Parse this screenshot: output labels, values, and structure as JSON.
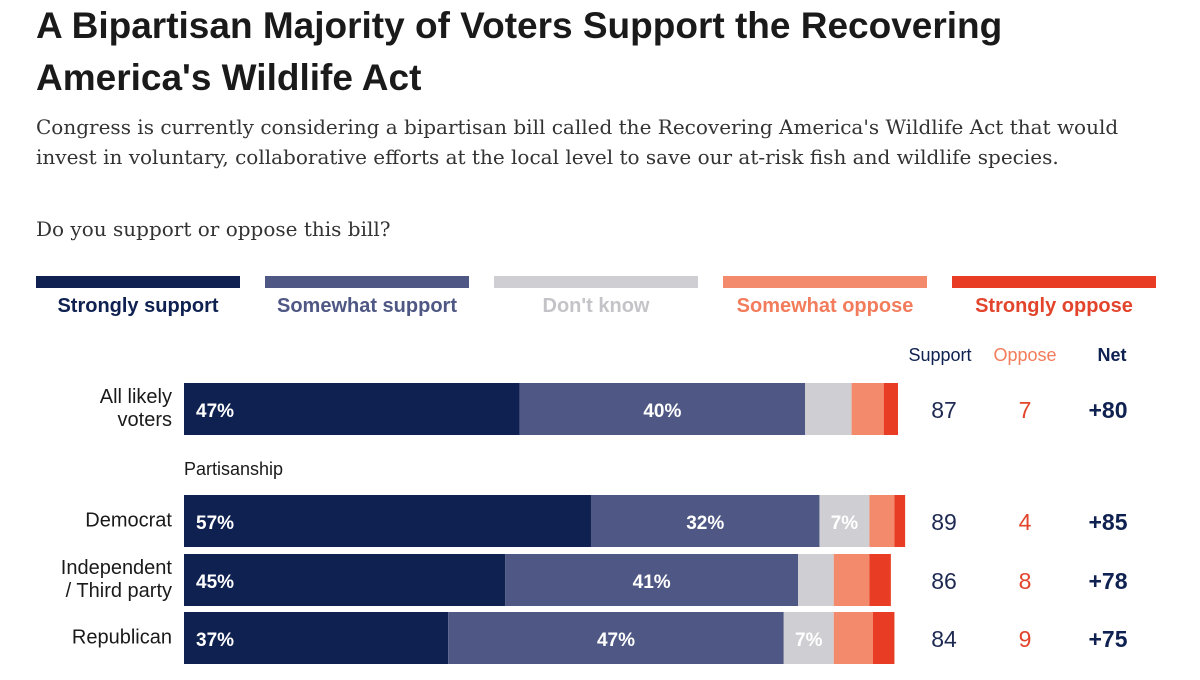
{
  "title": "A Bipartisan Majority of Voters Support the Recovering America's Wildlife Act",
  "subtitle": "Congress is currently considering a bipartisan bill called the Recovering America's Wildlife Act that would invest in voluntary, collaborative efforts at the local level to save our at-risk fish and wildlife species.",
  "question": "Do you support or oppose this bill?",
  "colors": {
    "strongly_support": "#0f2150",
    "somewhat_support": "#4f5884",
    "dont_know": "#cfcfd3",
    "somewhat_oppose": "#f38a6b",
    "strongly_oppose": "#e93c24"
  },
  "legend": [
    {
      "label": "Strongly support",
      "color": "#0f2150",
      "text_color": "#0f2150"
    },
    {
      "label": "Somewhat support",
      "color": "#4f5884",
      "text_color": "#4f5884"
    },
    {
      "label": "Don't know",
      "color": "#cfcfd3",
      "text_color": "#c4c4c8"
    },
    {
      "label": "Somewhat oppose",
      "color": "#f38a6b",
      "text_color": "#f27c5b"
    },
    {
      "label": "Strongly oppose",
      "color": "#e93c24",
      "text_color": "#e2452c"
    }
  ],
  "columns": {
    "support": "Support",
    "oppose": "Oppose",
    "net": "Net"
  },
  "section_label": "Partisanship",
  "chart_data": {
    "type": "bar",
    "orientation": "horizontal",
    "stacked": true,
    "xlim": [
      0,
      100
    ],
    "categories": [
      "All likely voters",
      "Democrat",
      "Independent / Third party",
      "Republican"
    ],
    "category_display": [
      "All likely\nvoters",
      "Democrat",
      "Independent\n/ Third party",
      "Republican"
    ],
    "series": [
      {
        "name": "Strongly support",
        "values": [
          47,
          57,
          45,
          37
        ]
      },
      {
        "name": "Somewhat support",
        "values": [
          40,
          32,
          41,
          47
        ]
      },
      {
        "name": "Don't know",
        "values": [
          6.5,
          7,
          5,
          7
        ]
      },
      {
        "name": "Somewhat oppose",
        "values": [
          4.5,
          3.5,
          5,
          5.5
        ]
      },
      {
        "name": "Strongly oppose",
        "values": [
          2,
          1.5,
          3,
          3
        ]
      }
    ],
    "data_labels": [
      [
        "47%",
        "40%",
        "",
        "",
        ""
      ],
      [
        "57%",
        "32%",
        "7%",
        "",
        ""
      ],
      [
        "45%",
        "41%",
        "",
        "",
        ""
      ],
      [
        "37%",
        "47%",
        "7%",
        "",
        ""
      ]
    ],
    "support": [
      87,
      89,
      86,
      84
    ],
    "oppose": [
      7,
      4,
      8,
      9
    ],
    "net": [
      "+80",
      "+85",
      "+78",
      "+75"
    ]
  }
}
